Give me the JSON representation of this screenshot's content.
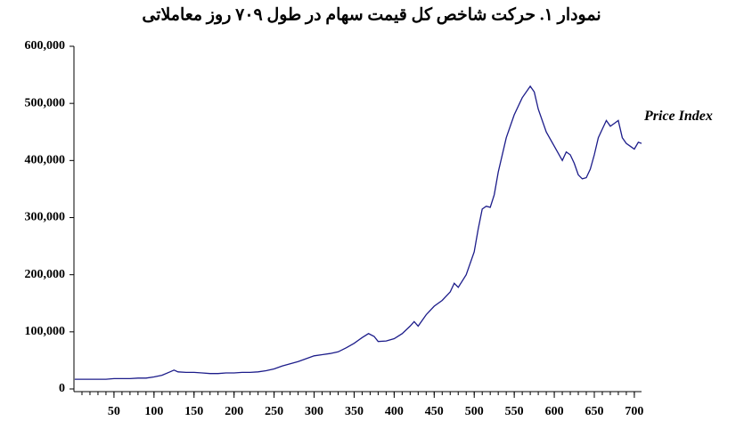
{
  "chart_data": {
    "type": "line",
    "title": "نمودار ۱. حرکت شاخص کل قیمت سهام در طول ۷۰۹ روز معاملاتی",
    "annotation": "Price Index",
    "xlim": [
      0,
      709
    ],
    "xticks": [
      50,
      100,
      150,
      200,
      250,
      300,
      350,
      400,
      450,
      500,
      550,
      600,
      650,
      700
    ],
    "ylim": [
      0,
      600000
    ],
    "yticks": [
      {
        "value": 0,
        "label": "0"
      },
      {
        "value": 100000,
        "label": "100,000"
      },
      {
        "value": 200000,
        "label": "200,000"
      },
      {
        "value": 300000,
        "label": "300,000"
      },
      {
        "value": 400000,
        "label": "400,000"
      },
      {
        "value": 500000,
        "label": "500,000"
      },
      {
        "value": 600000,
        "label": "600,000"
      }
    ],
    "x": [
      1,
      10,
      20,
      30,
      40,
      50,
      60,
      70,
      80,
      90,
      100,
      110,
      120,
      125,
      130,
      140,
      150,
      160,
      170,
      180,
      190,
      200,
      210,
      220,
      230,
      240,
      250,
      260,
      270,
      280,
      290,
      300,
      310,
      320,
      330,
      340,
      350,
      360,
      368,
      375,
      380,
      390,
      400,
      410,
      420,
      425,
      430,
      440,
      450,
      460,
      470,
      475,
      480,
      490,
      500,
      505,
      510,
      515,
      520,
      525,
      530,
      540,
      550,
      560,
      570,
      575,
      580,
      590,
      600,
      610,
      615,
      620,
      625,
      630,
      635,
      640,
      645,
      650,
      655,
      660,
      665,
      670,
      675,
      680,
      685,
      690,
      695,
      700,
      705,
      709
    ],
    "series": [
      {
        "color": "#1c1c8a",
        "values": [
          17000,
          17000,
          17000,
          17000,
          17000,
          18000,
          18000,
          18000,
          19000,
          19000,
          21000,
          24000,
          30000,
          33000,
          30000,
          29000,
          29000,
          28000,
          27000,
          27000,
          28000,
          28000,
          29000,
          29000,
          30000,
          32000,
          35000,
          40000,
          44000,
          48000,
          53000,
          58000,
          60000,
          62000,
          65000,
          72000,
          80000,
          90000,
          97000,
          92000,
          83000,
          84000,
          88000,
          97000,
          110000,
          118000,
          110000,
          130000,
          145000,
          155000,
          170000,
          185000,
          178000,
          200000,
          240000,
          280000,
          315000,
          320000,
          318000,
          340000,
          380000,
          440000,
          480000,
          510000,
          530000,
          520000,
          490000,
          450000,
          425000,
          400000,
          415000,
          410000,
          395000,
          375000,
          368000,
          370000,
          385000,
          410000,
          440000,
          455000,
          470000,
          460000,
          465000,
          470000,
          440000,
          430000,
          425000,
          420000,
          432000,
          430000
        ]
      }
    ]
  }
}
